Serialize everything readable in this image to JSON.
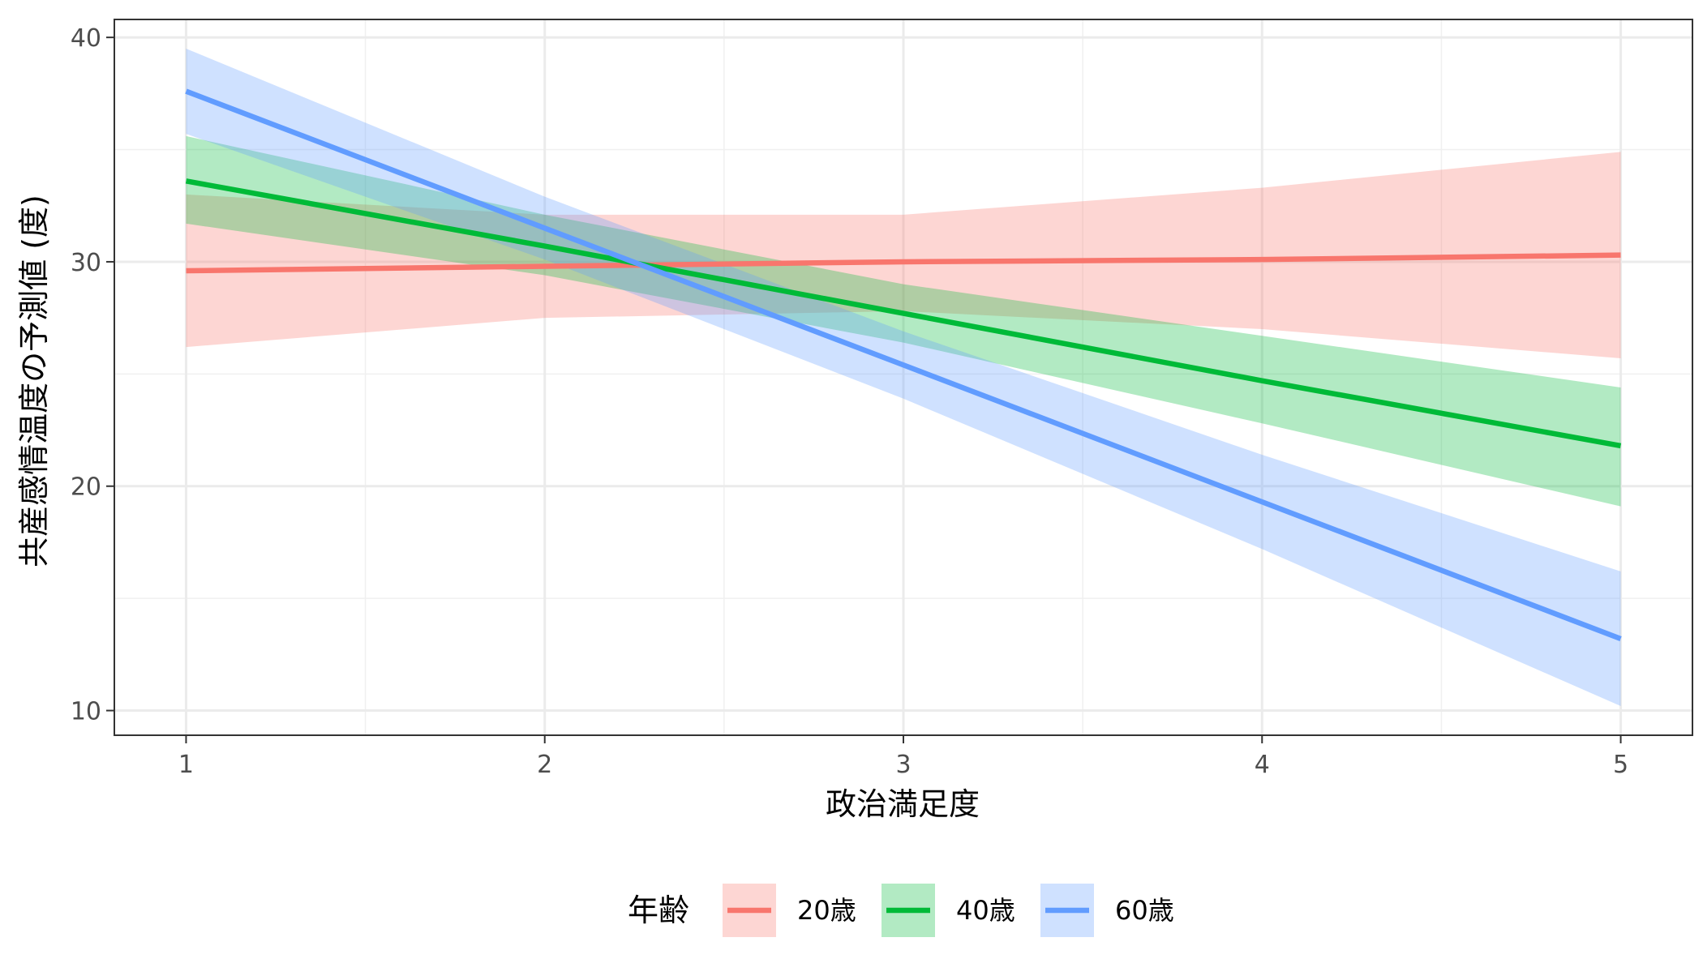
{
  "chart_data": {
    "type": "line",
    "xlabel": "政治満足度",
    "ylabel": "共産感情温度の予測値 (度)",
    "xlim": [
      0.8,
      5.2
    ],
    "ylim": [
      8.9,
      40.8
    ],
    "x_ticks": [
      "1",
      "2",
      "3",
      "4",
      "5"
    ],
    "x_tick_values": [
      1,
      2,
      3,
      4,
      5
    ],
    "y_ticks": [
      "10",
      "20",
      "30",
      "40"
    ],
    "y_tick_values": [
      10,
      20,
      30,
      40
    ],
    "grid": true,
    "legend_title": "年齢",
    "legend_position": "bottom",
    "x": [
      1,
      2,
      3,
      4,
      5
    ],
    "series": [
      {
        "name": "20歳",
        "color": "#F8766D",
        "fill": "#FCD4D1",
        "values": [
          29.6,
          29.8,
          30.0,
          30.1,
          30.3
        ],
        "lower": [
          26.2,
          27.5,
          27.8,
          27.0,
          25.7
        ],
        "upper": [
          33.0,
          32.1,
          32.1,
          33.3,
          34.9
        ]
      },
      {
        "name": "40歳",
        "color": "#00BA38",
        "fill": "#B3EAC3",
        "values": [
          33.6,
          30.7,
          27.7,
          24.7,
          21.8
        ],
        "lower": [
          31.7,
          29.4,
          26.4,
          22.8,
          19.1
        ],
        "upper": [
          35.6,
          32.1,
          29.0,
          26.7,
          24.4
        ]
      },
      {
        "name": "60歳",
        "color": "#619CFF",
        "fill": "#D0E1FF",
        "values": [
          37.6,
          31.5,
          25.4,
          19.3,
          13.2
        ],
        "lower": [
          35.7,
          30.1,
          23.9,
          17.2,
          10.2
        ],
        "upper": [
          39.5,
          32.9,
          26.9,
          21.4,
          16.2
        ]
      }
    ]
  }
}
